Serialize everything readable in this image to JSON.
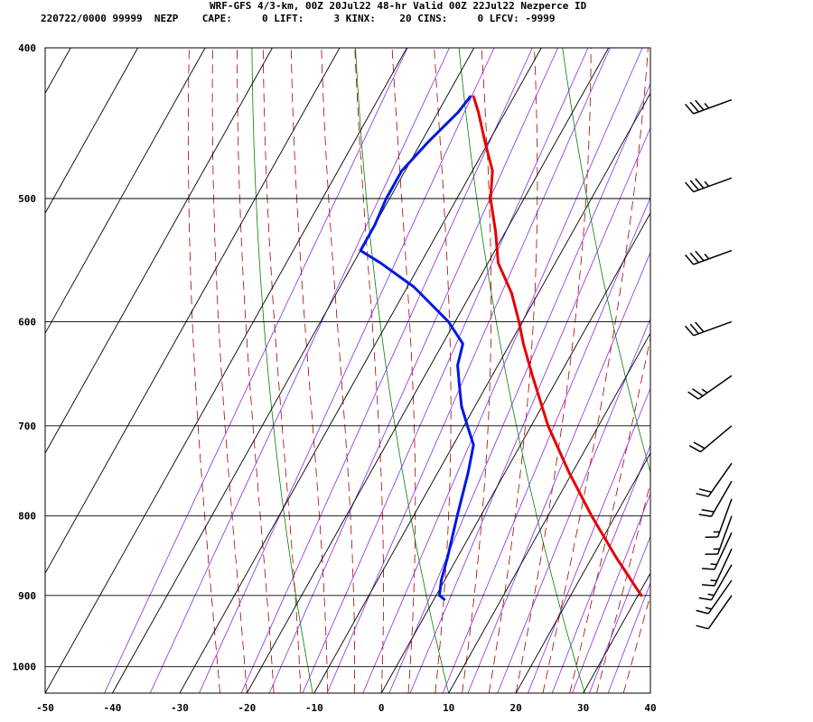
{
  "header": {
    "title": "WRF-GFS 4/3-km, 00Z 20Jul22 48-hr Valid 00Z 22Jul22 Nezperce ID",
    "stats": "220722/0000 99999  NEZP    CAPE:     0 LIFT:     3 KINX:    20 CINS:     0 LFCV: -9999"
  },
  "chart_data": {
    "type": "line",
    "subtype": "skew-T log-P sounding",
    "x_axis": {
      "min": -50,
      "max": 40,
      "ticks": [
        "-50",
        "-40",
        "-30",
        "-20",
        "-10",
        "0",
        "10",
        "20",
        "30",
        "40"
      ]
    },
    "y_axis": {
      "scale": "log",
      "top": 400,
      "bottom": 1040,
      "ticks": [
        "400",
        "500",
        "600",
        "700",
        "800",
        "900",
        "1000"
      ]
    },
    "grid": true,
    "colors": {
      "temperature": "#e60000",
      "dewpoint": "#0018e6",
      "dry_adiabat": "#008000",
      "moist_adiabat": "#aa0000",
      "mixing_ratio": "#8a2be2",
      "grid": "#000000"
    },
    "series": [
      {
        "key": "temperature",
        "color": "#e60000",
        "points": [
          [
            900,
            30.5
          ],
          [
            850,
            23.5
          ],
          [
            800,
            16.5
          ],
          [
            750,
            9.5
          ],
          [
            700,
            2.5
          ],
          [
            650,
            -4
          ],
          [
            620,
            -8
          ],
          [
            600,
            -10.5
          ],
          [
            575,
            -14
          ],
          [
            550,
            -18.5
          ],
          [
            525,
            -21.5
          ],
          [
            500,
            -25
          ],
          [
            480,
            -27
          ],
          [
            460,
            -30.5
          ],
          [
            440,
            -34
          ],
          [
            430,
            -36
          ]
        ]
      },
      {
        "key": "dewpoint",
        "color": "#0018e6",
        "points": [
          [
            905,
            1.5
          ],
          [
            900,
            0.5
          ],
          [
            880,
            -0.5
          ],
          [
            850,
            -1.5
          ],
          [
            800,
            -3.5
          ],
          [
            750,
            -5.5
          ],
          [
            720,
            -7
          ],
          [
            700,
            -9.5
          ],
          [
            680,
            -12
          ],
          [
            660,
            -14
          ],
          [
            640,
            -16
          ],
          [
            620,
            -17
          ],
          [
            600,
            -21
          ],
          [
            570,
            -29
          ],
          [
            550,
            -36
          ],
          [
            540,
            -40
          ],
          [
            520,
            -40
          ],
          [
            500,
            -40.5
          ],
          [
            480,
            -40.5
          ],
          [
            460,
            -39
          ],
          [
            440,
            -37
          ],
          [
            430,
            -36.5
          ]
        ]
      }
    ],
    "wind_barbs": [
      {
        "p": 432,
        "dir": 250,
        "kt": 35
      },
      {
        "p": 485,
        "dir": 250,
        "kt": 35
      },
      {
        "p": 540,
        "dir": 250,
        "kt": 35
      },
      {
        "p": 600,
        "dir": 250,
        "kt": 30
      },
      {
        "p": 650,
        "dir": 235,
        "kt": 25
      },
      {
        "p": 700,
        "dir": 230,
        "kt": 20
      },
      {
        "p": 740,
        "dir": 215,
        "kt": 20
      },
      {
        "p": 760,
        "dir": 210,
        "kt": 20
      },
      {
        "p": 780,
        "dir": 200,
        "kt": 15
      },
      {
        "p": 800,
        "dir": 200,
        "kt": 15
      },
      {
        "p": 820,
        "dir": 205,
        "kt": 15
      },
      {
        "p": 840,
        "dir": 205,
        "kt": 15
      },
      {
        "p": 860,
        "dir": 210,
        "kt": 15
      },
      {
        "p": 880,
        "dir": 215,
        "kt": 15
      },
      {
        "p": 900,
        "dir": 215,
        "kt": 10
      }
    ]
  }
}
